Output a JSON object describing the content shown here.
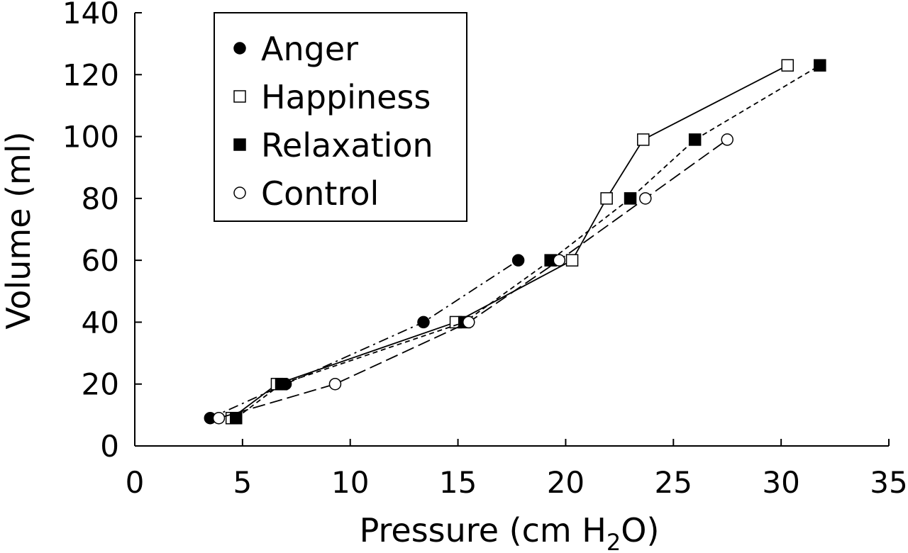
{
  "chart_data": {
    "type": "line",
    "xlabel": "Pressure (cm H",
    "xlabel_sub": "2",
    "xlabel_end": "O)",
    "ylabel": "Volume (ml)",
    "xlim": [
      0,
      35
    ],
    "ylim": [
      0,
      140
    ],
    "xticks": [
      "0",
      "5",
      "10",
      "15",
      "20",
      "25",
      "30",
      "35"
    ],
    "yticks": [
      "0",
      "20",
      "40",
      "60",
      "80",
      "100",
      "120",
      "140"
    ],
    "grid": false,
    "legend_position": "top-left",
    "series": [
      {
        "name": "Anger",
        "marker": "filled-circle",
        "line_style": "dash-dot",
        "points": [
          [
            3.5,
            9
          ],
          [
            7.0,
            20
          ],
          [
            13.4,
            40
          ],
          [
            17.8,
            60
          ]
        ]
      },
      {
        "name": "Happiness",
        "marker": "open-square",
        "line_style": "solid",
        "points": [
          [
            4.5,
            9
          ],
          [
            6.6,
            20
          ],
          [
            14.9,
            40
          ],
          [
            20.3,
            60
          ],
          [
            21.9,
            80
          ],
          [
            23.6,
            99
          ],
          [
            30.3,
            123
          ]
        ]
      },
      {
        "name": "Relaxation",
        "marker": "filled-square",
        "line_style": "short-dash",
        "points": [
          [
            4.7,
            9
          ],
          [
            6.8,
            20
          ],
          [
            15.3,
            40
          ],
          [
            19.3,
            60
          ],
          [
            23.0,
            80
          ],
          [
            26.0,
            99
          ],
          [
            31.8,
            123
          ]
        ]
      },
      {
        "name": "Control",
        "marker": "open-circle",
        "line_style": "long-dash",
        "points": [
          [
            3.9,
            9
          ],
          [
            9.3,
            20
          ],
          [
            15.5,
            40
          ],
          [
            19.7,
            60
          ],
          [
            23.7,
            80
          ],
          [
            27.5,
            99
          ]
        ]
      }
    ]
  }
}
